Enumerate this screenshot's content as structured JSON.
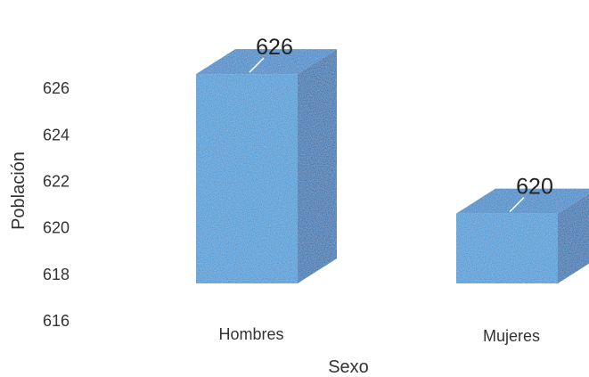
{
  "chart_data": {
    "type": "bar",
    "title": "",
    "xlabel": "Sexo",
    "ylabel": "Población",
    "categories": [
      "Hombres",
      "Mujeres"
    ],
    "values": [
      626,
      620
    ],
    "data_labels": [
      "626",
      "620"
    ],
    "ylim": [
      616,
      627
    ],
    "yticks": [
      616,
      618,
      620,
      622,
      624,
      626
    ],
    "ytick_labels": [
      "616",
      "618",
      "620",
      "622",
      "624",
      "626"
    ],
    "grid": false,
    "legend": "none",
    "style": "3d",
    "colors": {
      "front": "#3a98d6",
      "top": "#2d86c8",
      "side": "#1f6fae",
      "leader": "#ffffff"
    }
  }
}
